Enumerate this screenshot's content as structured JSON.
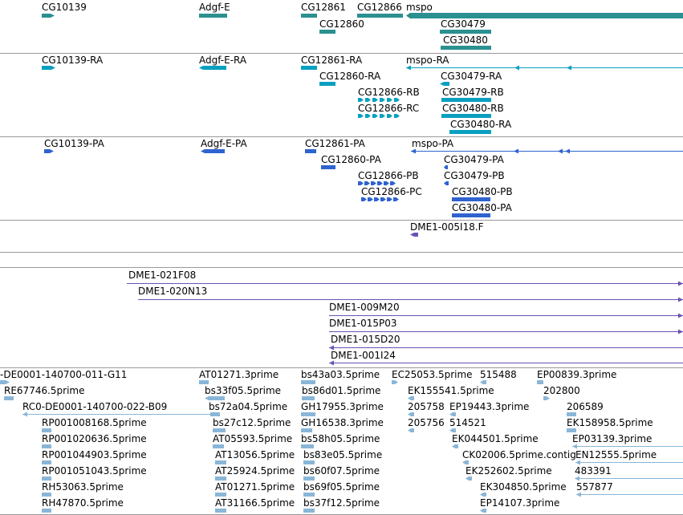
{
  "colors": {
    "gene": "#2a9090",
    "transcript": "#0aa0c0",
    "protein": "#2e63d0",
    "clone": "#6a52b4",
    "est": "#8ab6d8",
    "divider": "#9a9a9a"
  },
  "tracks": {
    "gene": {
      "labels": [
        "CG10139",
        "Adgf-E",
        "CG12861",
        "CG12866",
        "mspo",
        "CG12860",
        "CG30479",
        "CG30480"
      ]
    },
    "transcript": {
      "labels": [
        "CG10139-RA",
        "Adgf-E-RA",
        "CG12861-RA",
        "mspo-RA",
        "CG12860-RA",
        "CG30479-RA",
        "CG12866-RB",
        "CG30479-RB",
        "CG12866-RC",
        "CG30480-RB",
        "CG30480-RA"
      ]
    },
    "protein": {
      "labels": [
        "CG10139-PA",
        "Adgf-E-PA",
        "CG12861-PA",
        "mspo-PA",
        "CG12860-PA",
        "CG30479-PA",
        "CG12866-PB",
        "CG30479-PB",
        "CG12866-PC",
        "CG30480-PB",
        "CG30480-PA"
      ]
    },
    "clone_single": {
      "labels": [
        "DME1-005I18.F"
      ]
    },
    "clone": {
      "labels": [
        "DME1-021F08",
        "DME1-020N13",
        "DME1-009M20",
        "DME1-015P03",
        "DME1-015D20",
        "DME1-001I24"
      ]
    },
    "est": {
      "labels": [
        "-DE0001-140700-011-G11",
        "AT01271.3prime",
        "bs43a03.5prime",
        "EC25053.5prime",
        "515488",
        "EP00839.3prime",
        "RE67746.5prime",
        "bs33f05.5prime",
        "bs86d01.5prime",
        "EK155541.5prime",
        "202800",
        "RC0-DE0001-140700-022-B09",
        "bs72a04.5prime",
        "GH17955.3prime",
        "205758",
        "EP19443.3prime",
        "206589",
        "RP001008168.5prime",
        "bs27c12.5prime",
        "GH16538.3prime",
        "205756",
        "514521",
        "EK158958.5prime",
        "RP001020636.5prime",
        "AT05593.5prime",
        "bs58h05.5prime",
        "EK044501.5prime",
        "EP03139.3prime",
        "RP001044903.5prime",
        "AT13056.5prime",
        "bs83e05.5prime",
        "CK02006.5prime.contig",
        "EN12555.5prime",
        "RP001051043.5prime",
        "AT25924.5prime",
        "bs60f07.5prime",
        "EK252602.5prime",
        "483391",
        "RH53063.5prime",
        "AT01271.5prime",
        "bs69f05.5prime",
        "EK304850.5prime",
        "557877",
        "RH47870.5prime",
        "AT31166.5prime",
        "bs37f12.5prime",
        "EP14107.3prime"
      ]
    }
  }
}
